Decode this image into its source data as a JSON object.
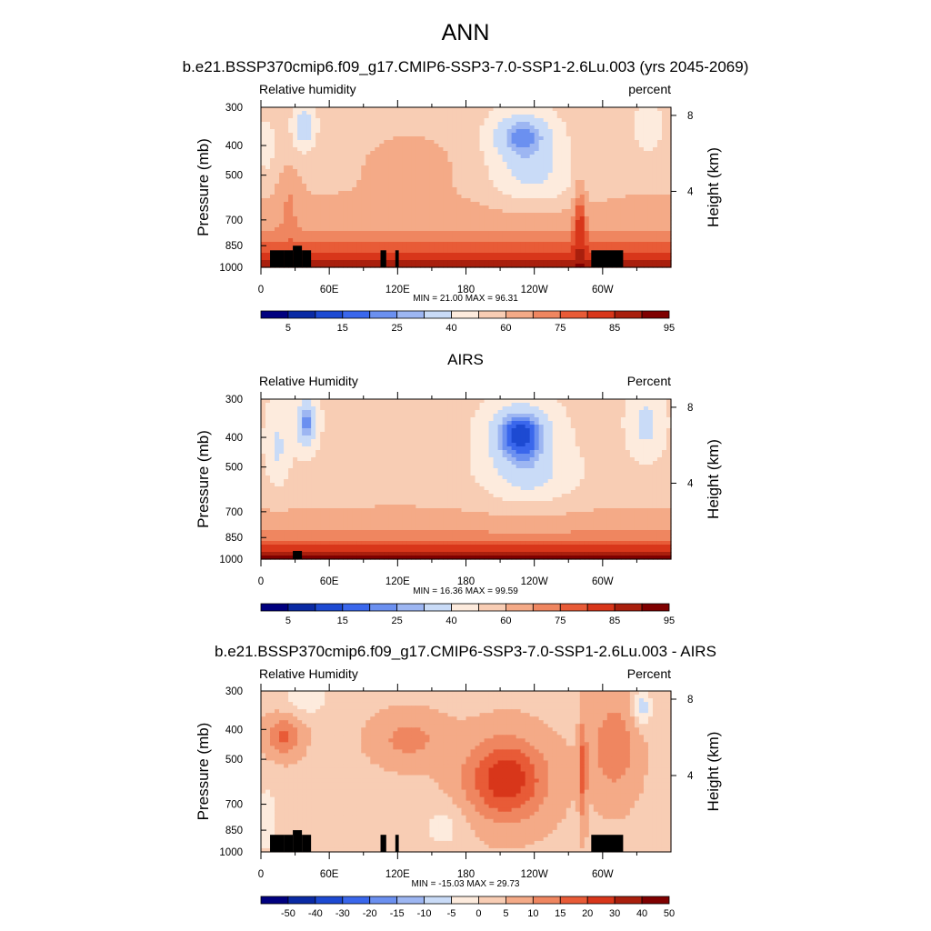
{
  "figure": {
    "title": "ANN",
    "subtitle": "b.e21.BSSP370cmip6.f09_g17.CMIP6-SSP3-7.0-SSP1-2.6Lu.003 (yrs 2045-2069)"
  },
  "chart_data": [
    {
      "type": "heatmap",
      "title": "",
      "left_label": "Relative humidity",
      "right_label": "percent",
      "xlabel": "",
      "ylabel": "Pressure (mb)",
      "ylabel_right": "Height (km)",
      "x_ticks": [
        "0",
        "60E",
        "120E",
        "180",
        "120W",
        "60W"
      ],
      "y_ticks": [
        "300",
        "400",
        "500",
        "700",
        "850",
        "1000"
      ],
      "y_right_ticks": [
        "8",
        "4"
      ],
      "stats": "MIN =  21.00  MAX =  96.31",
      "colorbar": {
        "ticks": [
          "5",
          "15",
          "25",
          "40",
          "60",
          "75",
          "85",
          "95"
        ],
        "colors": [
          "#00007f",
          "#0a2aa4",
          "#1d4ad2",
          "#3a67ec",
          "#6b90f0",
          "#9db6f2",
          "#c9dbf7",
          "#fdebdd",
          "#f8cdb4",
          "#f4aa87",
          "#ef8660",
          "#e85b37",
          "#d8361a",
          "#a91f0d",
          "#7f0000"
        ]
      }
    },
    {
      "type": "heatmap",
      "title": "AIRS",
      "left_label": "Relative Humidity",
      "right_label": "Percent",
      "xlabel": "",
      "ylabel": "Pressure (mb)",
      "ylabel_right": "Height (km)",
      "x_ticks": [
        "0",
        "60E",
        "120E",
        "180",
        "120W",
        "60W"
      ],
      "y_ticks": [
        "300",
        "400",
        "500",
        "700",
        "850",
        "1000"
      ],
      "y_right_ticks": [
        "8",
        "4"
      ],
      "stats": "MIN =  16.36  MAX =  99.59",
      "colorbar": {
        "ticks": [
          "5",
          "15",
          "25",
          "40",
          "60",
          "75",
          "85",
          "95"
        ],
        "colors": [
          "#00007f",
          "#0a2aa4",
          "#1d4ad2",
          "#3a67ec",
          "#6b90f0",
          "#9db6f2",
          "#c9dbf7",
          "#fdebdd",
          "#f8cdb4",
          "#f4aa87",
          "#ef8660",
          "#e85b37",
          "#d8361a",
          "#a91f0d",
          "#7f0000"
        ]
      }
    },
    {
      "type": "heatmap",
      "title": "b.e21.BSSP370cmip6.f09_g17.CMIP6-SSP3-7.0-SSP1-2.6Lu.003 - AIRS",
      "left_label": "Relative Humidity",
      "right_label": "Percent",
      "xlabel": "",
      "ylabel": "Pressure (mb)",
      "ylabel_right": "Height (km)",
      "x_ticks": [
        "0",
        "60E",
        "120E",
        "180",
        "120W",
        "60W"
      ],
      "y_ticks": [
        "300",
        "400",
        "500",
        "700",
        "850",
        "1000"
      ],
      "y_right_ticks": [
        "8",
        "4"
      ],
      "stats": "MIN = -15.03  MAX =  29.73",
      "colorbar": {
        "ticks": [
          "-50",
          "-40",
          "-30",
          "-20",
          "-15",
          "-10",
          "-5",
          "0",
          "5",
          "10",
          "15",
          "20",
          "30",
          "40",
          "50"
        ],
        "colors": [
          "#00007f",
          "#0a2aa4",
          "#1d4ad2",
          "#3a67ec",
          "#6b90f0",
          "#9db6f2",
          "#c9dbf7",
          "#fdebdd",
          "#f8cdb4",
          "#f4aa87",
          "#ef8660",
          "#e85b37",
          "#d8361a",
          "#a91f0d",
          "#7f0000"
        ]
      }
    }
  ]
}
